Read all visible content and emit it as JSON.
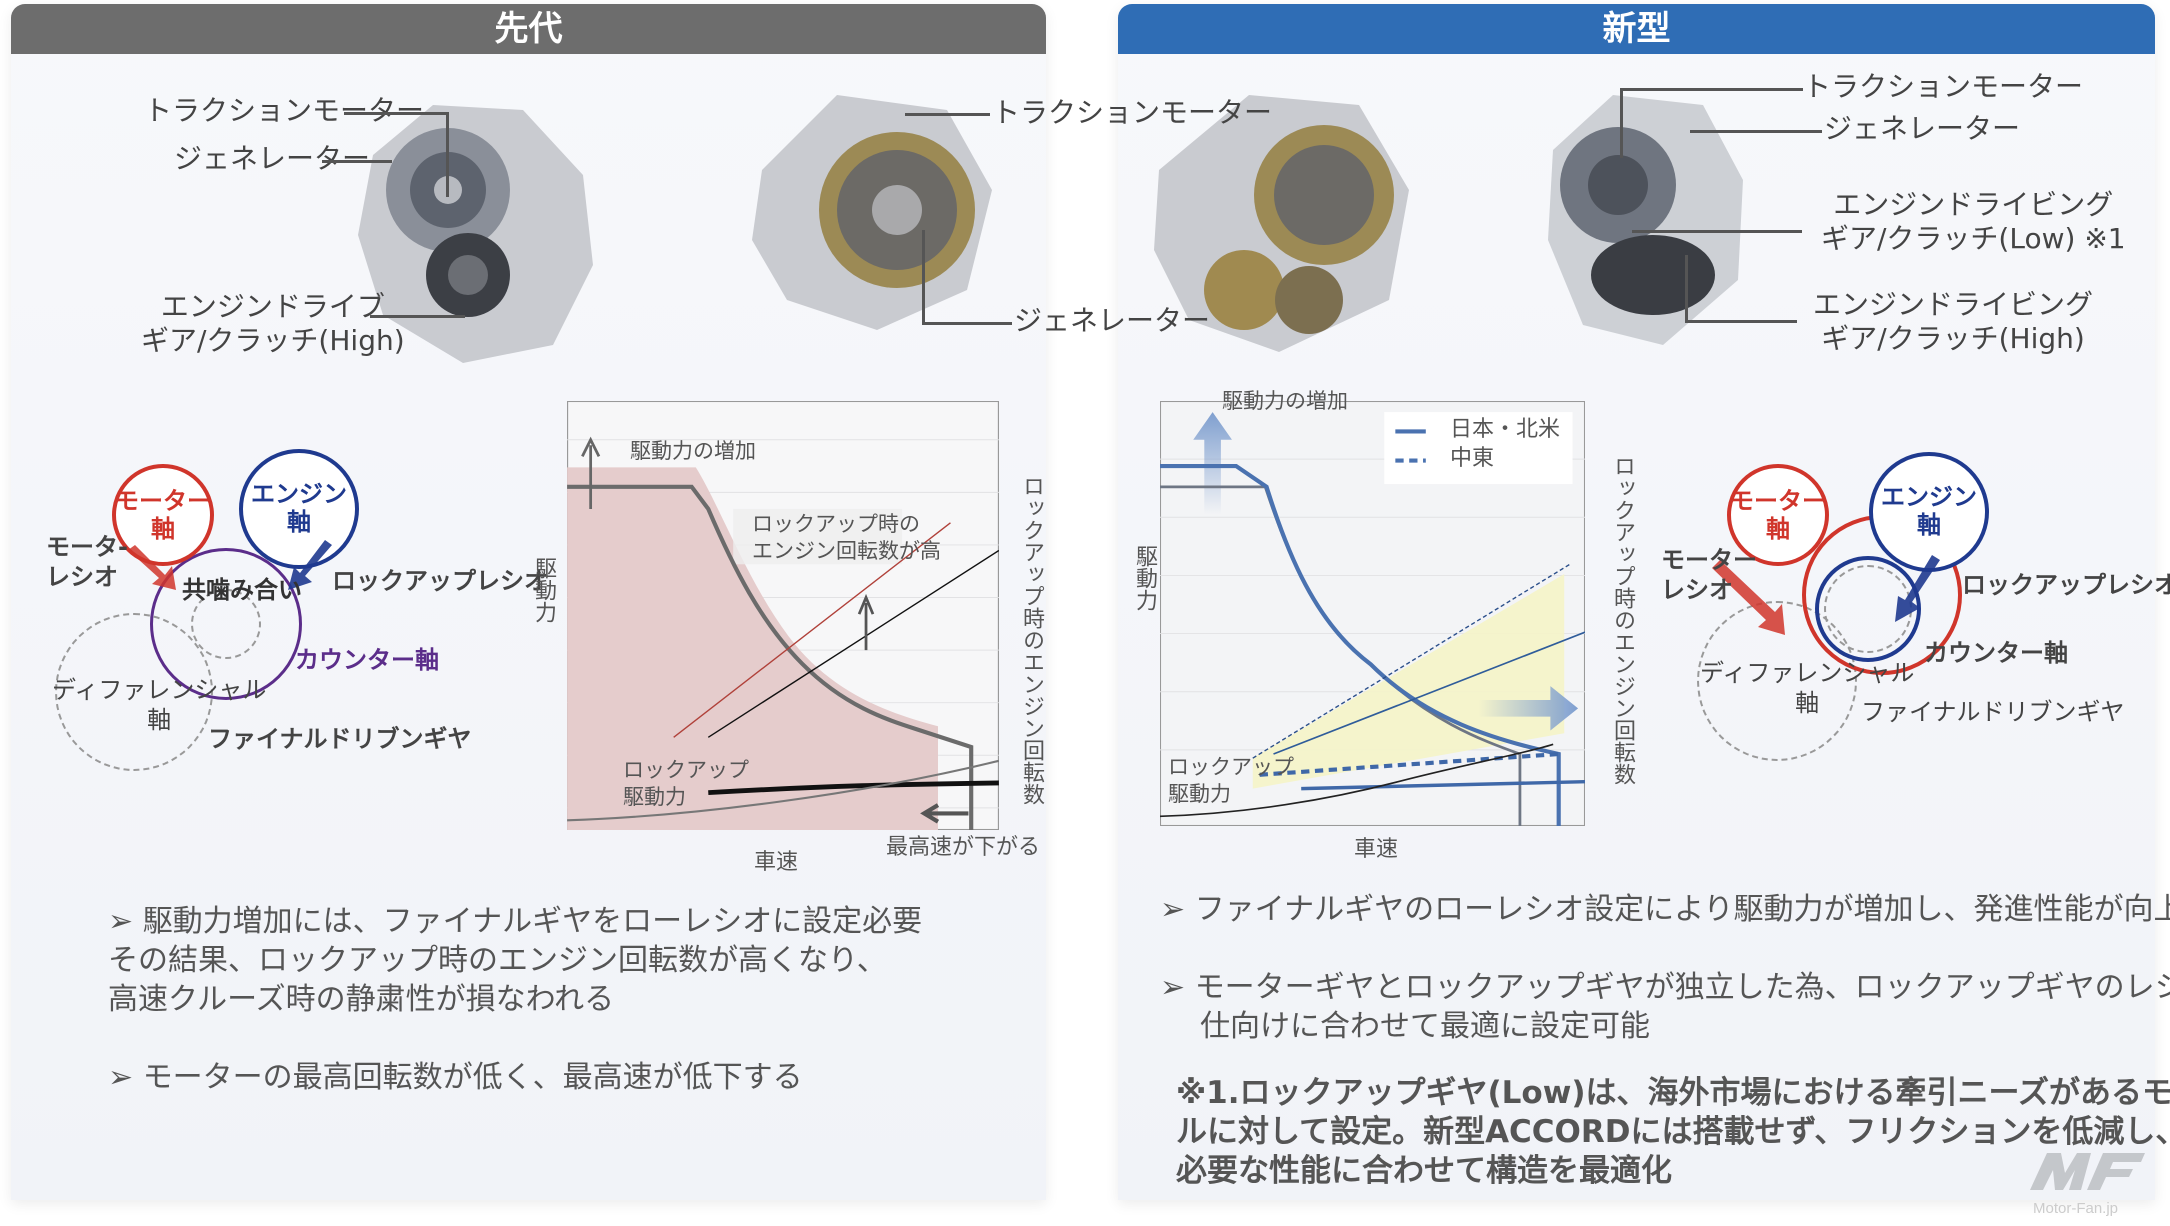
{
  "left": {
    "title": "先代",
    "engine_labels": {
      "traction_motor_1": "トラクションモーター",
      "generator_1": "ジェネレーター",
      "engine_drive_1": "エンジンドライブ",
      "engine_drive_2": "ギア/クラッチ(High)",
      "traction_motor_2": "トラクションモーター",
      "generator_2": "ジェネレーター"
    },
    "diagram": {
      "motor_shaft": [
        "モーター",
        "軸"
      ],
      "engine_shaft": [
        "エンジン",
        "軸"
      ],
      "motor_ratio": [
        "モータ-",
        "レシオ"
      ],
      "shared_mesh": "共噛み合い",
      "lockup_ratio": "ロックアップレシオ",
      "counter_shaft": "カウンター軸",
      "differential": [
        "ディファレンシャル",
        "軸"
      ],
      "final_driven_gear": "ファイナルドリブンギヤ"
    },
    "chart": {
      "ylabel": "駆動力",
      "y2label": "ロックアップ時のエンジン回転数",
      "xlabel": "車速",
      "increase": "駆動力の増加",
      "rpm_note": [
        "ロックアップ時の",
        "エンジン回転数が高"
      ],
      "lockup_drive": [
        "ロックアップ",
        "駆動力"
      ],
      "top_speed": "最高速が下がる"
    },
    "bullets": [
      [
        "駆動力増加には、ファイナルギヤをローレシオに設定必要",
        "その結果、ロックアップ時のエンジン回転数が高くなり、",
        "高速クルーズ時の静粛性が損なわれる"
      ],
      [
        "モーターの最高回転数が低く、最高速が低下する"
      ]
    ]
  },
  "right": {
    "title": "新型",
    "engine_labels": {
      "traction_motor": "トラクションモーター",
      "generator": "ジェネレーター",
      "low_1": "エンジンドライビング",
      "low_2": "ギア/クラッチ(Low) ※1",
      "high_1": "エンジンドライビング",
      "high_2": "ギア/クラッチ(High)"
    },
    "chart": {
      "ylabel": "駆動力",
      "y2label": "ロックアップ時のエンジン回転数",
      "xlabel": "車速",
      "increase": "駆動力の増加",
      "legend": [
        "日本・北米",
        "中東"
      ],
      "lockup_drive": [
        "ロックアップ",
        "駆動力"
      ]
    },
    "diagram": {
      "motor_shaft": [
        "モーター",
        "軸"
      ],
      "engine_shaft": [
        "エンジン",
        "軸"
      ],
      "motor_ratio": [
        "モーター",
        "レシオ"
      ],
      "lockup_ratio": "ロックアップレシオ",
      "counter_shaft": "カウンター軸",
      "differential": [
        "ディファレンシャル",
        "軸"
      ],
      "final_driven_gear": "ファイナルドリブンギヤ"
    },
    "bullets": [
      [
        "ファイナルギヤのローレシオ設定により駆動力が増加し、発進性能が向上"
      ],
      [
        "モーターギヤとロックアップギヤが独立した為、ロックアップギヤのレシオが",
        "仕向けに合わせて最適に設定可能"
      ]
    ],
    "note": [
      "※1.ロックアップギヤ(Low)は、海外市場における牽引ニーズがあるモデ",
      "ルに対して設定。新型ACCORDには搭載せず、フリクションを低減し、",
      "必要な性能に合わせて構造を最適化"
    ]
  },
  "bullet_marker": "➢",
  "watermark": "MF Motor-Fan.jp",
  "colors": {
    "left_header": "#6d6d6d",
    "right_header": "#2f6db5",
    "motor_red": "#d0352b",
    "engine_navy": "#1f3a8f",
    "counter_purple": "#5b2d8a"
  }
}
